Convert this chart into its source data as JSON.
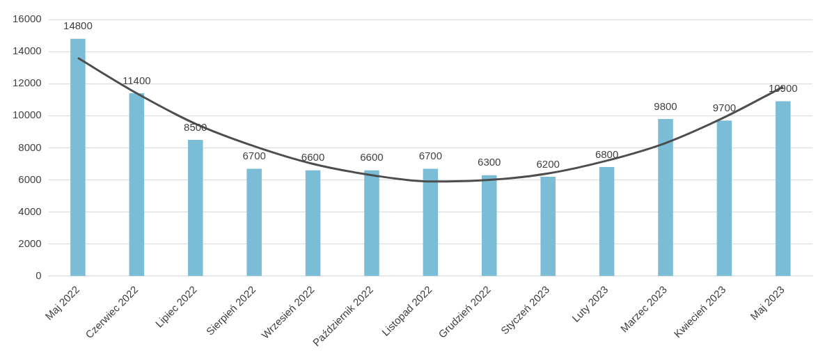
{
  "chart_data": {
    "type": "bar",
    "categories": [
      "Maj 2022",
      "Czerwiec 2022",
      "Lipiec 2022",
      "Sierpień 2022",
      "Wrzesień 2022",
      "Październik 2022",
      "Listopad 2022",
      "Grudzień 2022",
      "Styczeń 2023",
      "Luty 2023",
      "Marzec 2023",
      "Kwiecień 2023",
      "Maj 2023"
    ],
    "series": [
      {
        "color": "#7bbcd6",
        "values": [
          14800,
          11400,
          8500,
          6700,
          6600,
          6600,
          6700,
          6300,
          6200,
          6800,
          9800,
          9700,
          10900
        ],
        "value_labels": [
          "14800",
          "11400",
          "8500",
          "6700",
          "6600",
          "6600",
          "6700",
          "6300",
          "6200",
          "6800",
          "9800",
          "9700",
          "10900"
        ]
      },
      {
        "type": "line",
        "color": "#4d4d4d",
        "values": [
          13600,
          11400,
          9500,
          8100,
          7000,
          6300,
          5900,
          6000,
          6400,
          7200,
          8300,
          9900,
          11800
        ]
      }
    ],
    "ylim": [
      0,
      16000
    ],
    "yticks": [
      0,
      2000,
      4000,
      6000,
      8000,
      10000,
      12000,
      14000,
      16000
    ],
    "grid": "y",
    "legend": false,
    "marker": "none",
    "line_style": "solid"
  }
}
